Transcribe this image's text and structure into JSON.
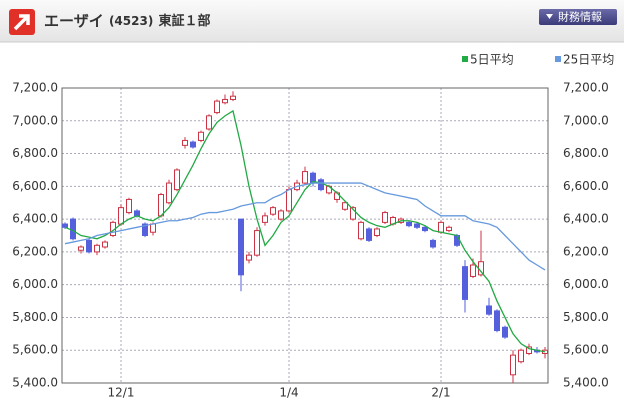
{
  "header": {
    "name": "エーザイ",
    "code": "(4523)",
    "market": "東証１部",
    "button": "財務情報"
  },
  "chart_data": {
    "type": "candlestick",
    "categories": [
      null,
      null,
      null,
      null,
      null,
      null,
      null,
      "12/1",
      null,
      null,
      null,
      null,
      null,
      null,
      null,
      null,
      null,
      null,
      null,
      null,
      null,
      null,
      null,
      null,
      null,
      null,
      null,
      null,
      "1/4",
      null,
      null,
      null,
      null,
      null,
      null,
      null,
      null,
      null,
      null,
      null,
      null,
      null,
      null,
      null,
      null,
      null,
      null,
      "2/1",
      null,
      null,
      null,
      null,
      null,
      null,
      null,
      null,
      null,
      null,
      null,
      null,
      null
    ],
    "open": [
      6370,
      6400,
      6210,
      6270,
      6200,
      6230,
      6300,
      6370,
      6440,
      6450,
      6370,
      6320,
      6420,
      6500,
      6580,
      6850,
      6870,
      6880,
      6950,
      7050,
      7110,
      7130,
      6400,
      6150,
      6180,
      6380,
      6430,
      6400,
      6450,
      6580,
      6620,
      6680,
      6640,
      6560,
      6520,
      6460,
      6400,
      6280,
      6340,
      6300,
      6380,
      6370,
      6380,
      6380,
      6370,
      6350,
      6270,
      6320,
      6330,
      6300,
      6110,
      6050,
      6060,
      5870,
      5840,
      5740,
      5450,
      5530,
      5580,
      5600,
      5580
    ],
    "high": [
      6380,
      6410,
      6240,
      6280,
      6250,
      6270,
      6390,
      6490,
      6530,
      6460,
      6380,
      6380,
      6560,
      6640,
      6710,
      6900,
      6880,
      6940,
      7040,
      7130,
      7160,
      7180,
      6400,
      6200,
      6350,
      6440,
      6480,
      6460,
      6600,
      6640,
      6720,
      6690,
      6650,
      6610,
      6570,
      6510,
      6480,
      6390,
      6350,
      6350,
      6450,
      6420,
      6410,
      6390,
      6380,
      6360,
      6280,
      6390,
      6360,
      6310,
      6150,
      6160,
      6330,
      5920,
      5850,
      5750,
      5600,
      5610,
      5640,
      5620,
      5620
    ],
    "low": [
      6340,
      6270,
      6190,
      6190,
      6180,
      6220,
      6290,
      6360,
      6430,
      6410,
      6290,
      6300,
      6410,
      6490,
      6570,
      6830,
      6830,
      6870,
      6940,
      7040,
      7100,
      7120,
      5960,
      6130,
      6170,
      6360,
      6420,
      6390,
      6440,
      6570,
      6610,
      6600,
      6570,
      6550,
      6500,
      6450,
      6390,
      6270,
      6260,
      6290,
      6370,
      6360,
      6370,
      6350,
      6340,
      6320,
      6220,
      6310,
      6320,
      6230,
      5830,
      6040,
      6050,
      5810,
      5710,
      5670,
      5400,
      5520,
      5570,
      5580,
      5550
    ],
    "close": [
      6350,
      6280,
      6230,
      6200,
      6240,
      6260,
      6380,
      6470,
      6520,
      6420,
      6300,
      6370,
      6550,
      6620,
      6700,
      6880,
      6840,
      6930,
      7030,
      7120,
      7130,
      7150,
      6060,
      6180,
      6330,
      6420,
      6470,
      6450,
      6580,
      6620,
      6690,
      6620,
      6580,
      6600,
      6560,
      6500,
      6470,
      6380,
      6270,
      6340,
      6440,
      6410,
      6400,
      6360,
      6350,
      6330,
      6230,
      6380,
      6350,
      6240,
      5910,
      6120,
      6140,
      5820,
      5720,
      5680,
      5570,
      5600,
      5620,
      5590,
      5600
    ],
    "up_color": "#cc3344",
    "down_color": "#5560dd",
    "series": [
      {
        "name": "5日平均",
        "color": "#22aa44",
        "values": [
          6350,
          6330,
          6300,
          6290,
          6280,
          6300,
          6330,
          6370,
          6400,
          6420,
          6400,
          6390,
          6420,
          6470,
          6550,
          6640,
          6730,
          6830,
          6920,
          6990,
          7030,
          7060,
          6850,
          6600,
          6400,
          6240,
          6300,
          6380,
          6420,
          6500,
          6580,
          6630,
          6620,
          6600,
          6560,
          6510,
          6460,
          6410,
          6380,
          6360,
          6350,
          6370,
          6390,
          6390,
          6380,
          6360,
          6330,
          6320,
          6310,
          6300,
          6210,
          6140,
          6080,
          6020,
          5900,
          5800,
          5700,
          5640,
          5610,
          5600,
          5590
        ]
      },
      {
        "name": "25日平均",
        "color": "#6699dd",
        "values": [
          6250,
          6260,
          6270,
          6280,
          6300,
          6310,
          6320,
          6330,
          6340,
          6350,
          6360,
          6370,
          6380,
          6390,
          6390,
          6400,
          6410,
          6430,
          6440,
          6440,
          6450,
          6460,
          6480,
          6490,
          6500,
          6500,
          6530,
          6550,
          6580,
          6600,
          6610,
          6620,
          6620,
          6620,
          6620,
          6620,
          6620,
          6620,
          6600,
          6580,
          6560,
          6550,
          6540,
          6530,
          6520,
          6480,
          6450,
          6420,
          6420,
          6420,
          6420,
          6390,
          6380,
          6370,
          6350,
          6300,
          6250,
          6200,
          6150,
          6120,
          6090
        ]
      }
    ],
    "ylim": [
      5400,
      7200
    ],
    "yticks": [
      {
        "value": 5400,
        "label": "5,400.0"
      },
      {
        "value": 5600,
        "label": "5,600.0"
      },
      {
        "value": 5800,
        "label": "5,800.0"
      },
      {
        "value": 6000,
        "label": "6,000.0"
      },
      {
        "value": 6200,
        "label": "6,200.0"
      },
      {
        "value": 6400,
        "label": "6,400.0"
      },
      {
        "value": 6600,
        "label": "6,600.0"
      },
      {
        "value": 6800,
        "label": "6,800.0"
      },
      {
        "value": 7000,
        "label": "7,000.0"
      },
      {
        "value": 7200,
        "label": "7,200.0"
      }
    ],
    "grid": true
  }
}
